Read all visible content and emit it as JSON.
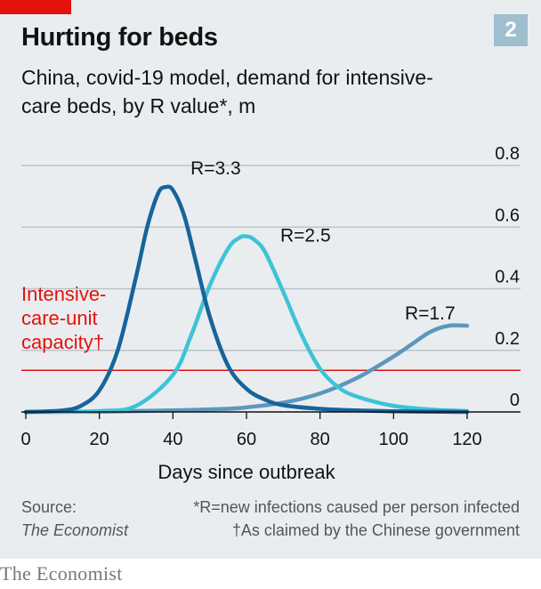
{
  "header": {
    "chart_number": "2",
    "title": "Hurting for beds",
    "subtitle": "China, covid-19 model, demand for intensive-care beds, by R value*, m"
  },
  "colors": {
    "accent_red": "#e3120b",
    "background": "#e9edf0",
    "badge": "#9fbfcf",
    "series_r33": "#17649a",
    "series_r25": "#3ec3d6",
    "series_r17": "#5d97bd"
  },
  "chart_data": {
    "type": "line",
    "title": "Hurting for beds",
    "subtitle": "China, covid-19 model, demand for intensive-care beds, by R value*, m",
    "xlabel": "Days since outbreak",
    "ylabel": "",
    "xlim": [
      0,
      120
    ],
    "ylim": [
      0,
      0.8
    ],
    "x_ticks": [
      "0",
      "20",
      "40",
      "60",
      "80",
      "100",
      "120"
    ],
    "y_ticks": [
      "0",
      "0.2",
      "0.4",
      "0.6",
      "0.8"
    ],
    "y_tick_values": [
      0,
      0.2,
      0.4,
      0.6,
      0.8
    ],
    "x_tick_values": [
      0,
      20,
      40,
      60,
      80,
      100,
      120
    ],
    "grid": true,
    "series": [
      {
        "name": "R=3.3",
        "color": "#17649a",
        "x": [
          0,
          10,
          15,
          20,
          25,
          30,
          33,
          36,
          38,
          40,
          43,
          46,
          50,
          55,
          60,
          65,
          70,
          80,
          90,
          100,
          110,
          120
        ],
        "y": [
          0,
          0.005,
          0.02,
          0.07,
          0.2,
          0.44,
          0.6,
          0.71,
          0.73,
          0.72,
          0.64,
          0.5,
          0.31,
          0.15,
          0.075,
          0.04,
          0.022,
          0.01,
          0.005,
          0.002,
          0.001,
          0
        ]
      },
      {
        "name": "R=2.5",
        "color": "#3ec3d6",
        "x": [
          0,
          20,
          30,
          40,
          45,
          50,
          55,
          58,
          60,
          62,
          65,
          70,
          75,
          80,
          85,
          90,
          100,
          110,
          120
        ],
        "y": [
          0,
          0.003,
          0.02,
          0.12,
          0.25,
          0.41,
          0.53,
          0.565,
          0.57,
          0.56,
          0.52,
          0.39,
          0.25,
          0.14,
          0.08,
          0.05,
          0.02,
          0.008,
          0.003
        ]
      },
      {
        "name": "R=1.7",
        "color": "#5d97bd",
        "x": [
          0,
          20,
          40,
          55,
          60,
          70,
          80,
          90,
          100,
          105,
          110,
          115,
          120
        ],
        "y": [
          0,
          0.001,
          0.005,
          0.01,
          0.015,
          0.03,
          0.06,
          0.11,
          0.18,
          0.22,
          0.26,
          0.28,
          0.28
        ]
      }
    ],
    "reference_line": {
      "label_lines": [
        "Intensive-",
        "care-unit",
        "capacity†"
      ],
      "value": 0.135,
      "color": "#e3120b"
    }
  },
  "footer": {
    "source_label": "Source:",
    "source_name": "The Economist",
    "note_r": "*R=new infections caused per person infected",
    "note_capacity": "†As claimed by the Chinese government",
    "logo": "The Economist"
  }
}
